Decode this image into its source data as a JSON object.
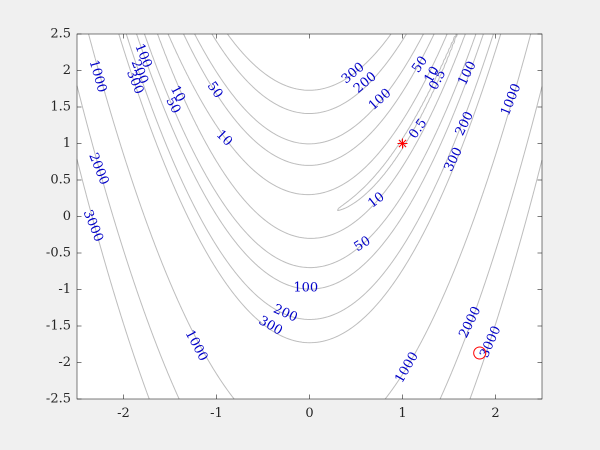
{
  "chart_data": {
    "type": "contour",
    "function": "rosenbrock",
    "x": {
      "lim": [
        -2.5,
        2.5
      ],
      "ticks": [
        -2,
        -1,
        0,
        1,
        2
      ]
    },
    "y": {
      "lim": [
        -2.5,
        2.5
      ],
      "ticks": [
        2.5,
        2,
        1.5,
        1,
        0.5,
        0,
        -0.5,
        -1,
        -1.5,
        -2,
        -2.5
      ]
    },
    "x_tick_labels": [
      "-2",
      "-1",
      "0",
      "1",
      "2"
    ],
    "y_tick_labels": [
      "2.5",
      "2",
      "1.5",
      "1",
      "0.5",
      "0",
      "-0.5",
      "-1",
      "-1.5",
      "-2",
      "-2.5"
    ],
    "levels": [
      0.5,
      10,
      50,
      100,
      200,
      300,
      1000,
      2000,
      3000
    ],
    "line_color": "#bdbdbd",
    "label_color": "#0000c8",
    "grid": false,
    "contour_labels": [
      {
        "text": "1000",
        "x": -2.28,
        "y": 1.92,
        "angle": 74
      },
      {
        "text": "2000",
        "x": -2.27,
        "y": 0.65,
        "angle": 68
      },
      {
        "text": "3000",
        "x": -2.33,
        "y": -0.13,
        "angle": 68
      },
      {
        "text": "100",
        "x": -1.79,
        "y": 2.2,
        "angle": 68
      },
      {
        "text": "200",
        "x": -1.83,
        "y": 1.98,
        "angle": 68
      },
      {
        "text": "300",
        "x": -1.88,
        "y": 1.84,
        "angle": 68
      },
      {
        "text": "10",
        "x": -1.42,
        "y": 1.68,
        "angle": 62
      },
      {
        "text": "50",
        "x": -1.47,
        "y": 1.52,
        "angle": 62
      },
      {
        "text": "50",
        "x": -1.02,
        "y": 1.73,
        "angle": 55
      },
      {
        "text": "10",
        "x": -0.92,
        "y": 1.07,
        "angle": 45
      },
      {
        "text": "1000",
        "x": -1.22,
        "y": -1.77,
        "angle": 62
      },
      {
        "text": "300",
        "x": 0.47,
        "y": 1.96,
        "angle": -40
      },
      {
        "text": "200",
        "x": 0.6,
        "y": 1.83,
        "angle": -40
      },
      {
        "text": "100",
        "x": 0.76,
        "y": 1.6,
        "angle": -42
      },
      {
        "text": "50",
        "x": 1.19,
        "y": 2.08,
        "angle": -55
      },
      {
        "text": "10",
        "x": 1.32,
        "y": 1.94,
        "angle": -60
      },
      {
        "text": "0.5",
        "x": 1.38,
        "y": 1.87,
        "angle": -62
      },
      {
        "text": "0.5",
        "x": 1.17,
        "y": 1.2,
        "angle": -55
      },
      {
        "text": "100",
        "x": 1.7,
        "y": 1.96,
        "angle": -64
      },
      {
        "text": "200",
        "x": 1.67,
        "y": 1.27,
        "angle": -64
      },
      {
        "text": "300",
        "x": 1.55,
        "y": 0.78,
        "angle": -64
      },
      {
        "text": "1000",
        "x": 2.17,
        "y": 1.6,
        "angle": -68
      },
      {
        "text": "10",
        "x": 0.72,
        "y": 0.22,
        "angle": -38
      },
      {
        "text": "50",
        "x": 0.57,
        "y": -0.38,
        "angle": -32
      },
      {
        "text": "100",
        "x": -0.04,
        "y": -0.98,
        "angle": 0
      },
      {
        "text": "200",
        "x": -0.26,
        "y": -1.33,
        "angle": 24
      },
      {
        "text": "300",
        "x": -0.42,
        "y": -1.5,
        "angle": 30
      },
      {
        "text": "1000",
        "x": 1.05,
        "y": -2.07,
        "angle": -60
      },
      {
        "text": "2000",
        "x": 1.73,
        "y": -1.45,
        "angle": -64
      },
      {
        "text": "3000",
        "x": 1.95,
        "y": -1.72,
        "angle": -66
      }
    ],
    "markers": [
      {
        "type": "asterisk",
        "x": 1.0,
        "y": 1.0,
        "color": "#ff0000"
      },
      {
        "type": "circle",
        "x": 1.83,
        "y": -1.87,
        "color": "#ff0000"
      }
    ]
  }
}
